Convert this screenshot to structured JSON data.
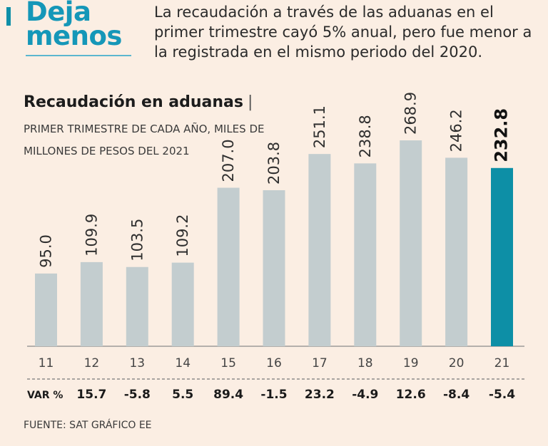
{
  "header": {
    "headline_line1": "Deja",
    "headline_line2": "menos",
    "deck": "La recaudación a través de las aduanas en el primer trimestre cayó 5% anual, pero fue menor a la registrada en el mismo periodo del 2020."
  },
  "colors": {
    "accent": "#1597b8",
    "bar_default": "#c3cdcf",
    "bar_highlight": "#0d8fa6",
    "background": "#fbeee3"
  },
  "chart_data": {
    "type": "bar",
    "title": "Recaudación en aduanas",
    "title_separator": "|",
    "subtitle": "PRIMER TRIMESTRE DE CADA AÑO, MILES DE MILLONES DE PESOS DEL 2021",
    "categories": [
      "11",
      "12",
      "13",
      "14",
      "15",
      "16",
      "17",
      "18",
      "19",
      "20",
      "21"
    ],
    "values": [
      95.0,
      109.9,
      103.5,
      109.2,
      207.0,
      203.8,
      251.1,
      238.8,
      268.9,
      246.2,
      232.8
    ],
    "value_labels": [
      "95.0",
      "109.9",
      "103.5",
      "109.2",
      "207.0",
      "203.8",
      "251.1",
      "238.8",
      "268.9",
      "246.2",
      "232.8"
    ],
    "highlight_index": 10,
    "var_label": "VAR %",
    "var_values": [
      "15.7",
      "-5.8",
      "5.5",
      "89.4",
      "-1.5",
      "23.2",
      "-4.9",
      "12.6",
      "-8.4",
      "-5.4"
    ],
    "ylim": [
      0,
      310
    ],
    "xlabel": "",
    "ylabel": ""
  },
  "footer": {
    "source": "FUENTE: SAT GRÁFICO EE"
  }
}
